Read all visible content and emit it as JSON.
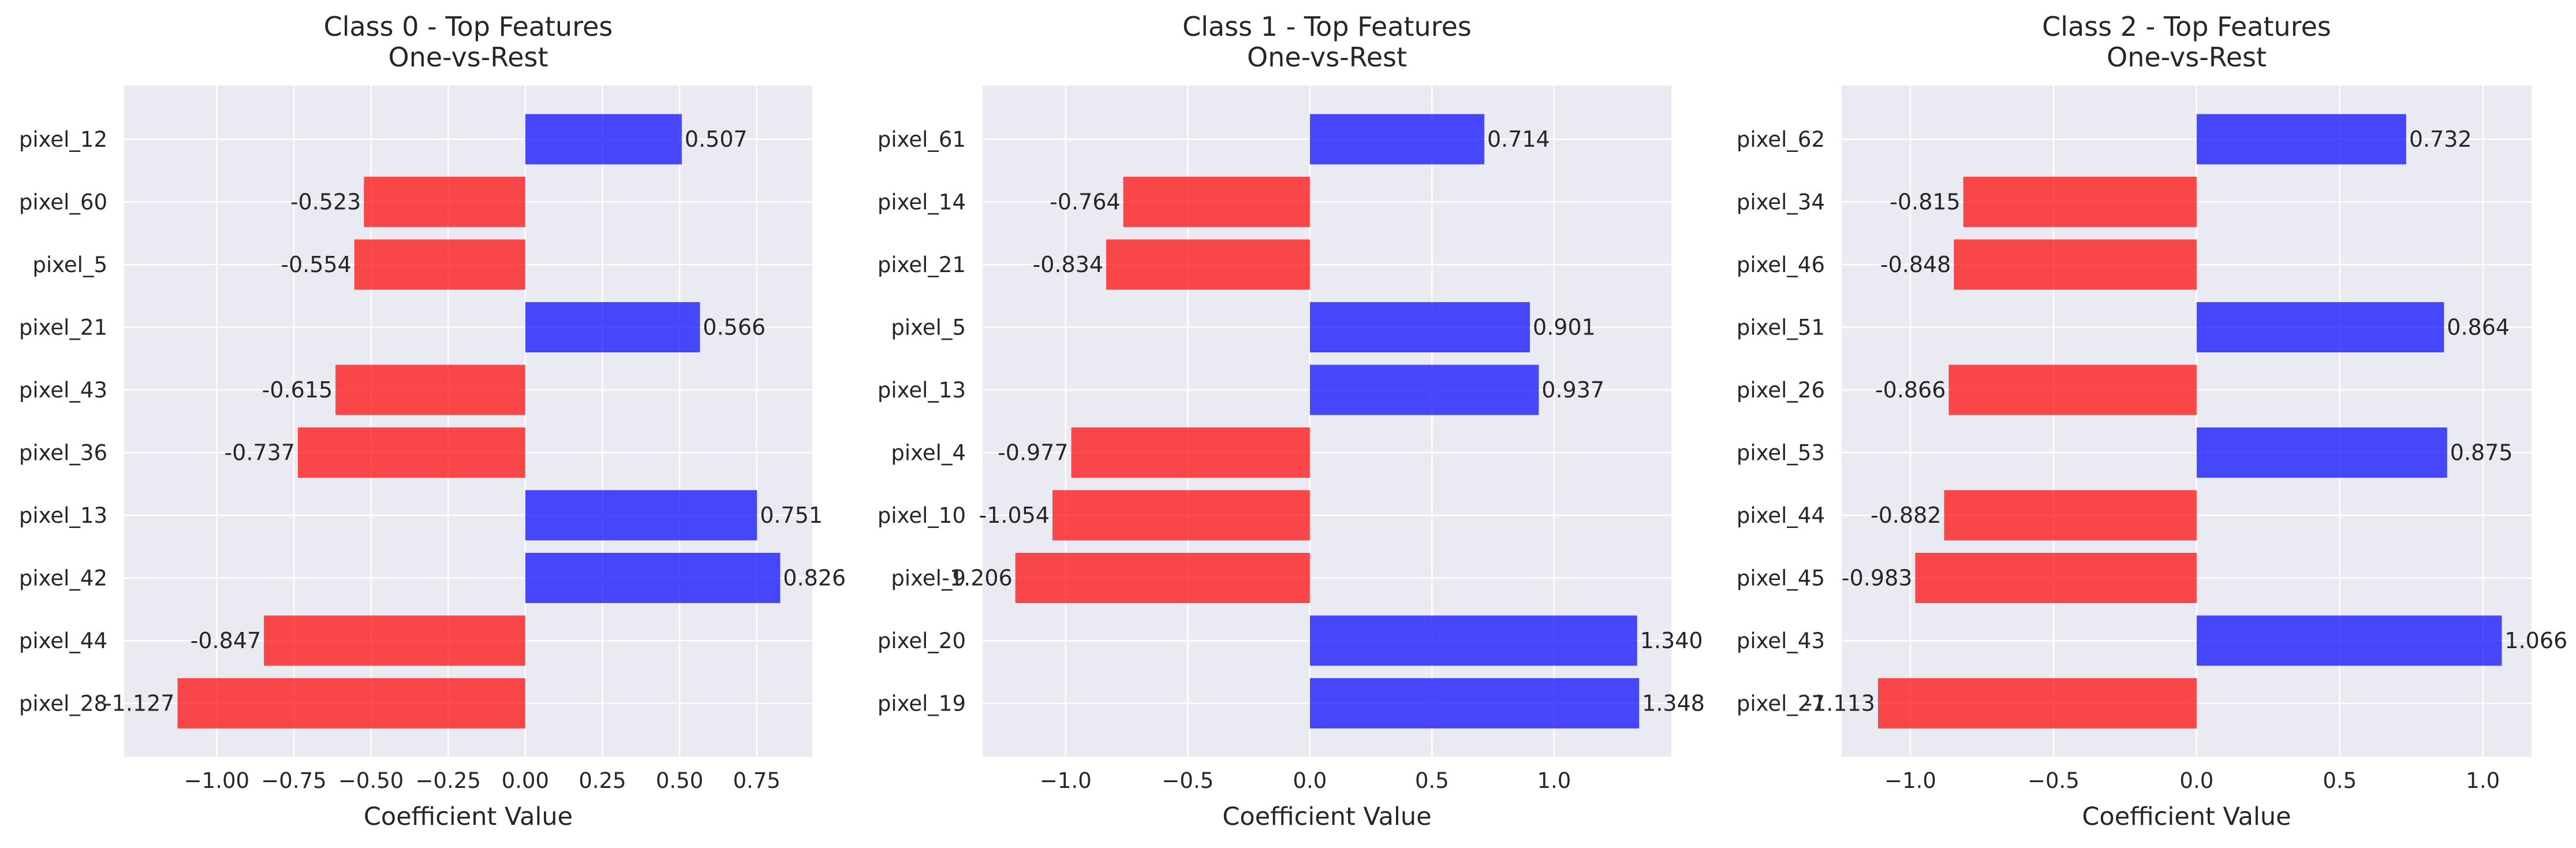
{
  "colors": {
    "positive": "#0000ff",
    "negative": "#ff0000",
    "plot_background": "#eaeaf2",
    "grid": "#ffffff"
  },
  "chart_data": [
    {
      "type": "bar",
      "orientation": "horizontal",
      "title": "Class 0 - Top Features",
      "subtitle": "One-vs-Rest",
      "xlabel": "Coefficient Value",
      "ylabel": "",
      "grid": true,
      "xlim": [
        -1.3,
        0.93
      ],
      "xticks": [
        -1.0,
        -0.75,
        -0.5,
        -0.25,
        0.0,
        0.25,
        0.5,
        0.75
      ],
      "xtick_labels": [
        "−1.00",
        "−0.75",
        "−0.50",
        "−0.25",
        "0.00",
        "0.25",
        "0.50",
        "0.75"
      ],
      "categories": [
        "pixel_12",
        "pixel_60",
        "pixel_5",
        "pixel_21",
        "pixel_43",
        "pixel_36",
        "pixel_13",
        "pixel_42",
        "pixel_44",
        "pixel_28"
      ],
      "values": [
        0.507,
        -0.523,
        -0.554,
        0.566,
        -0.615,
        -0.737,
        0.751,
        0.826,
        -0.847,
        -1.127
      ],
      "value_labels": [
        "0.507",
        "-0.523",
        "-0.554",
        "0.566",
        "-0.615",
        "-0.737",
        "0.751",
        "0.826",
        "-0.847",
        "-1.127"
      ]
    },
    {
      "type": "bar",
      "orientation": "horizontal",
      "title": "Class 1 - Top Features",
      "subtitle": "One-vs-Rest",
      "xlabel": "Coefficient Value",
      "ylabel": "",
      "grid": true,
      "xlim": [
        -1.34,
        1.48
      ],
      "xticks": [
        -1.0,
        -0.5,
        0.0,
        0.5,
        1.0
      ],
      "xtick_labels": [
        "−1.0",
        "−0.5",
        "0.0",
        "0.5",
        "1.0"
      ],
      "categories": [
        "pixel_61",
        "pixel_14",
        "pixel_21",
        "pixel_5",
        "pixel_13",
        "pixel_4",
        "pixel_10",
        "pixel_9",
        "pixel_20",
        "pixel_19"
      ],
      "values": [
        0.714,
        -0.764,
        -0.834,
        0.901,
        0.937,
        -0.977,
        -1.054,
        -1.206,
        1.34,
        1.348
      ],
      "value_labels": [
        "0.714",
        "-0.764",
        "-0.834",
        "0.901",
        "0.937",
        "-0.977",
        "-1.054",
        "-1.206",
        "1.340",
        "1.348"
      ]
    },
    {
      "type": "bar",
      "orientation": "horizontal",
      "title": "Class 2 - Top Features",
      "subtitle": "One-vs-Rest",
      "xlabel": "Coefficient Value",
      "ylabel": "",
      "grid": true,
      "xlim": [
        -1.24,
        1.17
      ],
      "xticks": [
        -1.0,
        -0.5,
        0.0,
        0.5,
        1.0
      ],
      "xtick_labels": [
        "−1.0",
        "−0.5",
        "0.0",
        "0.5",
        "1.0"
      ],
      "categories": [
        "pixel_62",
        "pixel_34",
        "pixel_46",
        "pixel_51",
        "pixel_26",
        "pixel_53",
        "pixel_44",
        "pixel_45",
        "pixel_43",
        "pixel_27"
      ],
      "values": [
        0.732,
        -0.815,
        -0.848,
        0.864,
        -0.866,
        0.875,
        -0.882,
        -0.983,
        1.066,
        -1.113
      ],
      "value_labels": [
        "0.732",
        "-0.815",
        "-0.848",
        "0.864",
        "-0.866",
        "0.875",
        "-0.882",
        "-0.983",
        "1.066",
        "-1.113"
      ]
    }
  ]
}
